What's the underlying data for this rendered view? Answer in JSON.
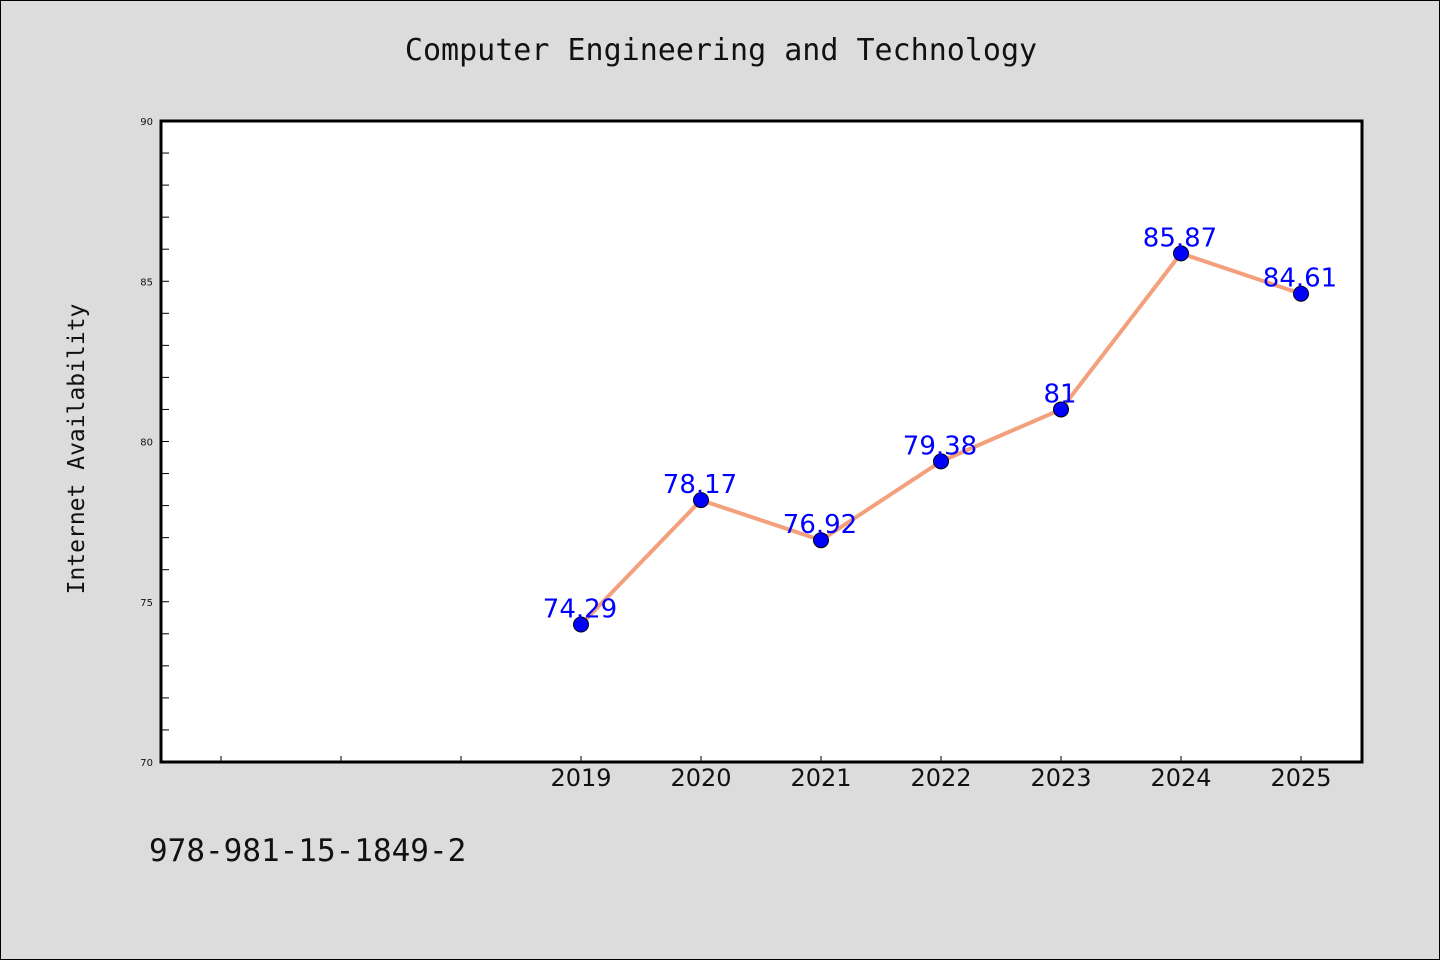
{
  "figure": {
    "title": "Computer Engineering and Technology",
    "footnote": "978-981-15-1849-2"
  },
  "chart_data": {
    "type": "line",
    "title": "Computer Engineering and Technology",
    "xlabel": "",
    "ylabel": "Internet Availability",
    "x": [
      "2019",
      "2020",
      "2021",
      "2022",
      "2023",
      "2024",
      "2025"
    ],
    "series": [
      {
        "values": [
          74.29,
          78.17,
          76.92,
          79.38,
          81,
          85.87,
          84.61
        ],
        "data_labels": [
          "74.29",
          "78.17",
          "76.92",
          "79.38",
          "81",
          "85.87",
          "84.61"
        ],
        "line_color": "#f4a07c",
        "marker_color": "#0000ff"
      }
    ],
    "ylim": [
      70,
      90
    ],
    "yticks": [
      70,
      75,
      80,
      85,
      90
    ],
    "ytick_labels": [
      "70",
      "75",
      "80",
      "85",
      "90"
    ],
    "grid": false,
    "legend": "none",
    "colors": {
      "figure_background": "#dcdcdc",
      "plot_background": "#ffffff",
      "label_color": "#0000ff"
    }
  }
}
